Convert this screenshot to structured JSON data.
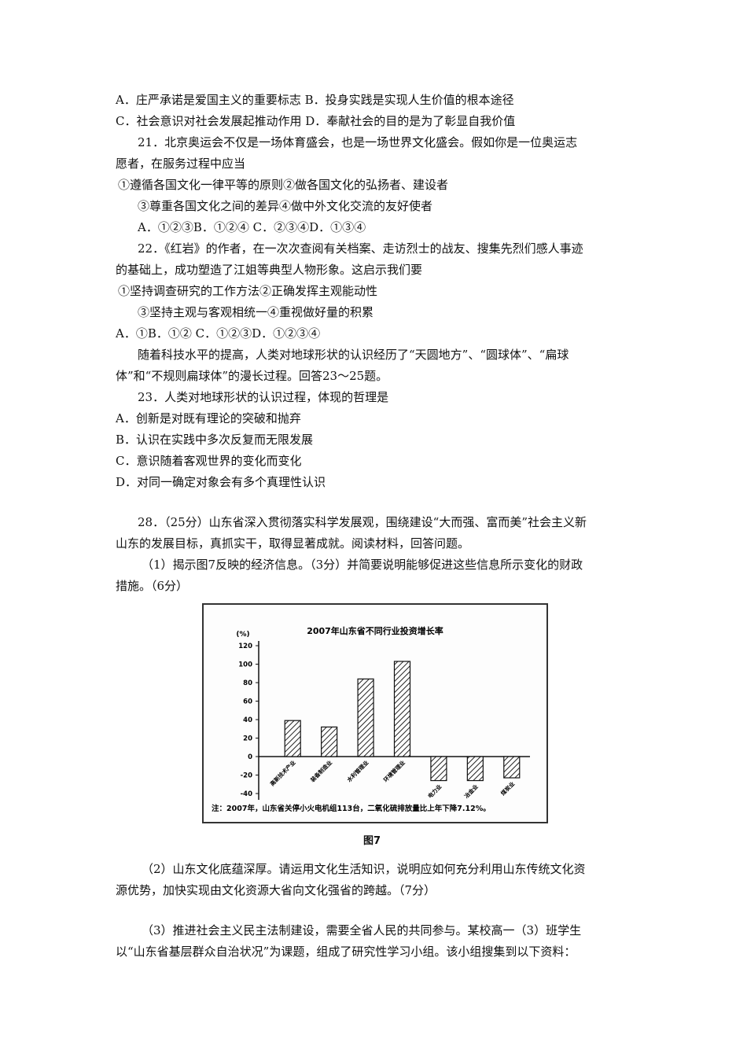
{
  "lines_top": [
    "A．庄严承诺是爱国主义的重要标志 B．投身实践是实现人生价值的根本途径",
    "C．社会意识对社会发展起推动作用 D．奉献社会的目的是为了彰显自我价值",
    "21．北京奥运会不仅是一场体育盛会，也是一场世界文化盛会。假如你是一位奥运志",
    "愿者，在服务过程中应当",
    "①遵循各国文化一律平等的原则②做各国文化的弘扬者、建设者",
    "③尊重各国文化之间的差异④做中外文化交流的友好使者",
    "A．①②③B．①②④ C．②③④D．①③④",
    "22．《红岩》的作者，在一次次查阅有关档案、走访烈士的战友、搜集先烈们感人事迹",
    "的基础上，成功塑造了江姐等典型人物形象。这启示我们要",
    "①坚持调查研究的工作方法②正确发挥主观能动性",
    "③坚持主观与客观相统一④重视做好量的积累",
    "A．①B．①② C．①②③D．①②③④",
    "随着科技水平的提高，人类对地球形状的认识经历了“天圆地方”、“圆球体”、“扁球",
    "体”和“不规则扁球体”的漫长过程。回答23～25题。",
    "23．人类对地球形状的认识过程，体现的哲理是",
    "A．创新是对既有理论的突破和抛弃",
    "B．认识在实践中多次反复而无限发展",
    "C．意识随着客观世界的变化而变化",
    "D．对同一确定对象会有多个真理性认识",
    "28．（25分）山东省深入贯彻落实科学发展观，围绕建设“大而强、富而美”社会主义新",
    "山东的发展目标，真抓实干，取得显著成就。阅读材料，回答问题。",
    "（1）揭示图7反映的经济信息。（3分）并简要说明能够促进这些信息所示变化的财政",
    "措施。（6分）"
  ],
  "figure_caption": "图7",
  "lines_bottom": [
    "（2）山东文化底蕴深厚。请运用文化生活知识，说明应如何充分利用山东传统文化资",
    "源优势，加快实现由文化资源大省向文化强省的跨越。（7分）",
    "（3）推进社会主义民主法制建设，需要全省人民的共同参与。某校高一（3）班学生",
    "以“山东省基层群众自治状况”为课题，组成了研究性学习小组。该小组搜集到以下资料："
  ],
  "chart_data": {
    "type": "bar",
    "title": "2007年山东省不同行业投资增长率",
    "ylabel": "(%)",
    "categories": [
      "高新技术产业",
      "装备制造业",
      "水利管理业",
      "环境管理业",
      "电力业",
      "冶金业",
      "煤炭业"
    ],
    "values": [
      39,
      32,
      84,
      103,
      -26,
      -26,
      -23
    ],
    "ylim": [
      -40,
      120
    ],
    "yticks": [
      "120",
      "100",
      "80",
      "60",
      "40",
      "20",
      "0",
      "-20",
      "-40"
    ],
    "note": "注：2007年，山东省关停小火电机组113台，二氧化硫排放量比上年下降7.12%。",
    "grid": false,
    "bar_fill": "hatched"
  }
}
